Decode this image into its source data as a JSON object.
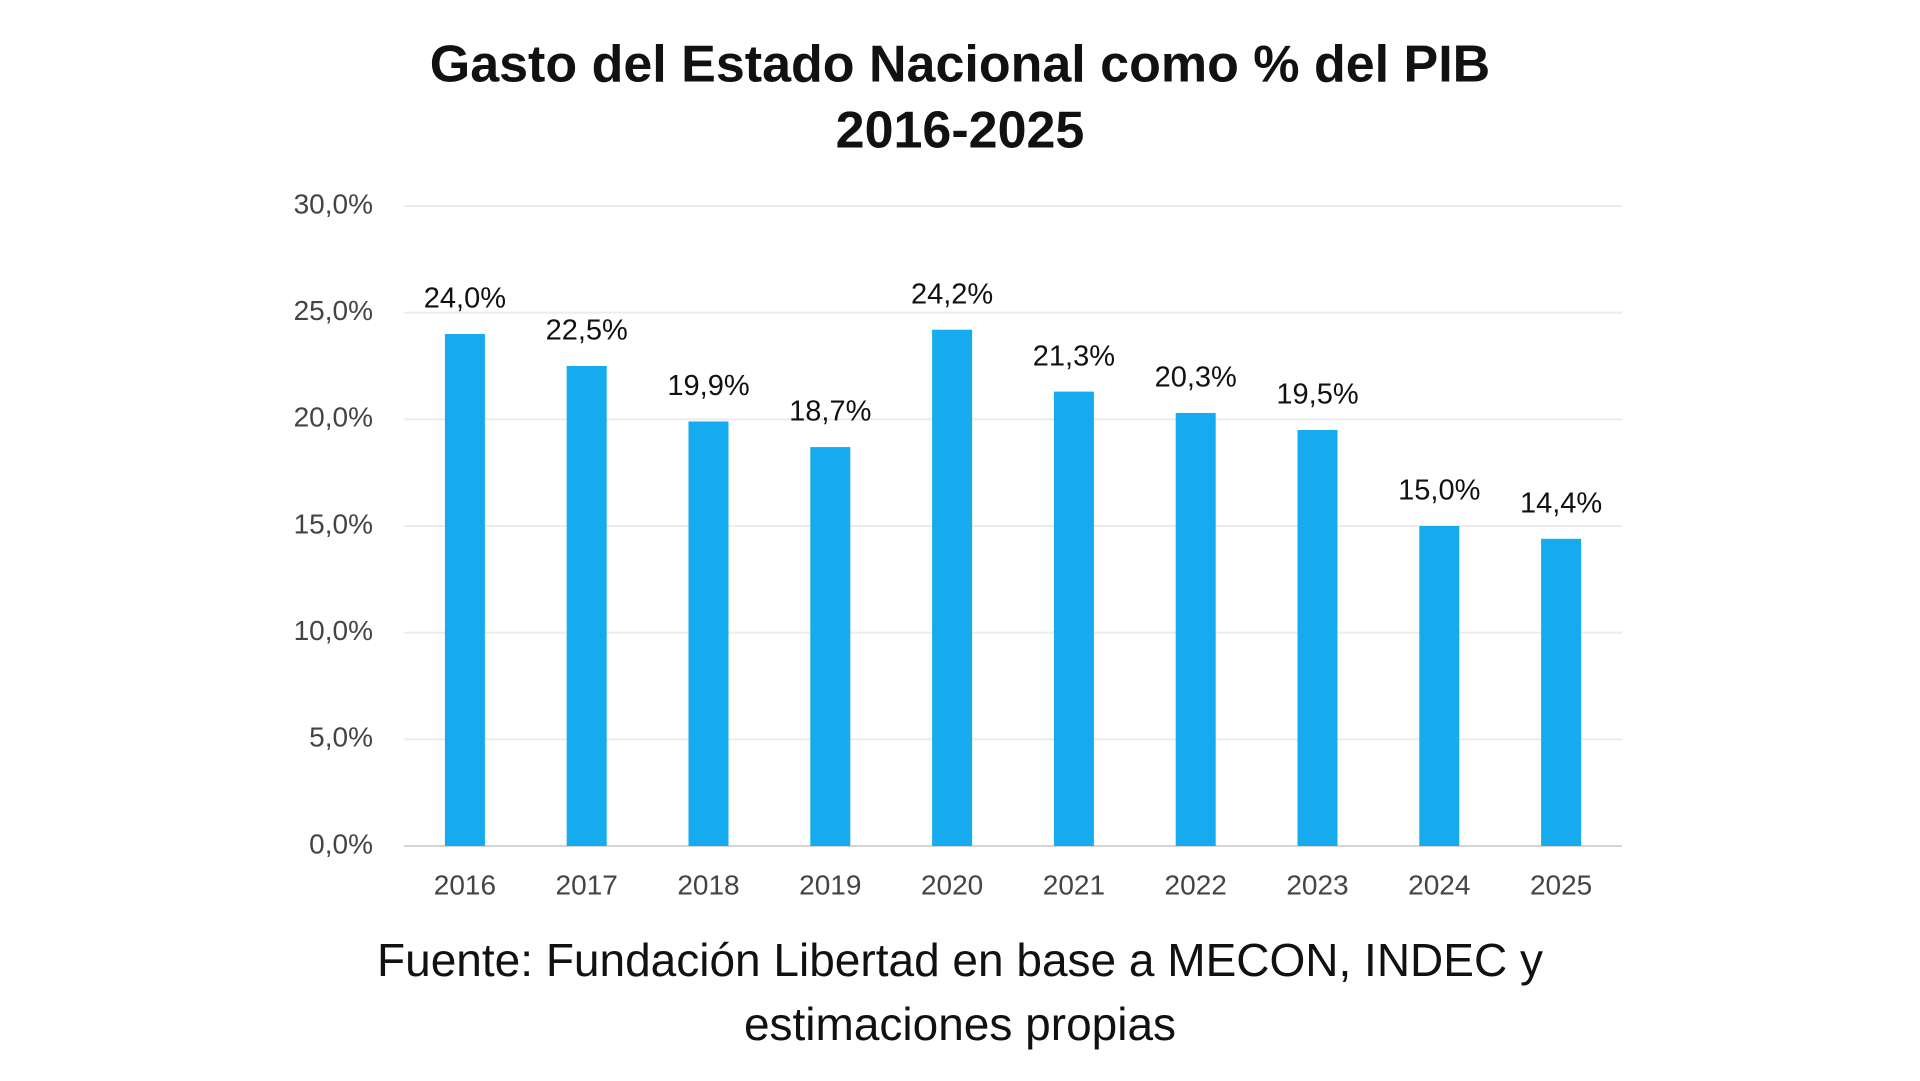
{
  "chart_data": {
    "type": "bar",
    "title": "Gasto del Estado Nacional como % del PIB",
    "subtitle": "2016-2025",
    "source": "Fuente: Fundación Libertad en base a MECON, INDEC y estimaciones propias",
    "categories": [
      "2016",
      "2017",
      "2018",
      "2019",
      "2020",
      "2021",
      "2022",
      "2023",
      "2024",
      "2025"
    ],
    "values": [
      24.0,
      22.5,
      19.9,
      18.7,
      24.2,
      21.3,
      20.3,
      19.5,
      15.0,
      14.4
    ],
    "value_labels": [
      "24,0%",
      "22,5%",
      "19,9%",
      "18,7%",
      "24,2%",
      "21,3%",
      "20,3%",
      "19,5%",
      "15,0%",
      "14,4%"
    ],
    "color": "#16aaee",
    "ylim": [
      0,
      30
    ],
    "yticks": [
      {
        "value": 0,
        "label": "0,0%"
      },
      {
        "value": 5,
        "label": "5,0%"
      },
      {
        "value": 10,
        "label": "10,0%"
      },
      {
        "value": 15,
        "label": "15,0%"
      },
      {
        "value": 20,
        "label": "20,0%"
      },
      {
        "value": 25,
        "label": "25,0%"
      },
      {
        "value": 30,
        "label": "30,0%"
      }
    ],
    "grid": true
  }
}
